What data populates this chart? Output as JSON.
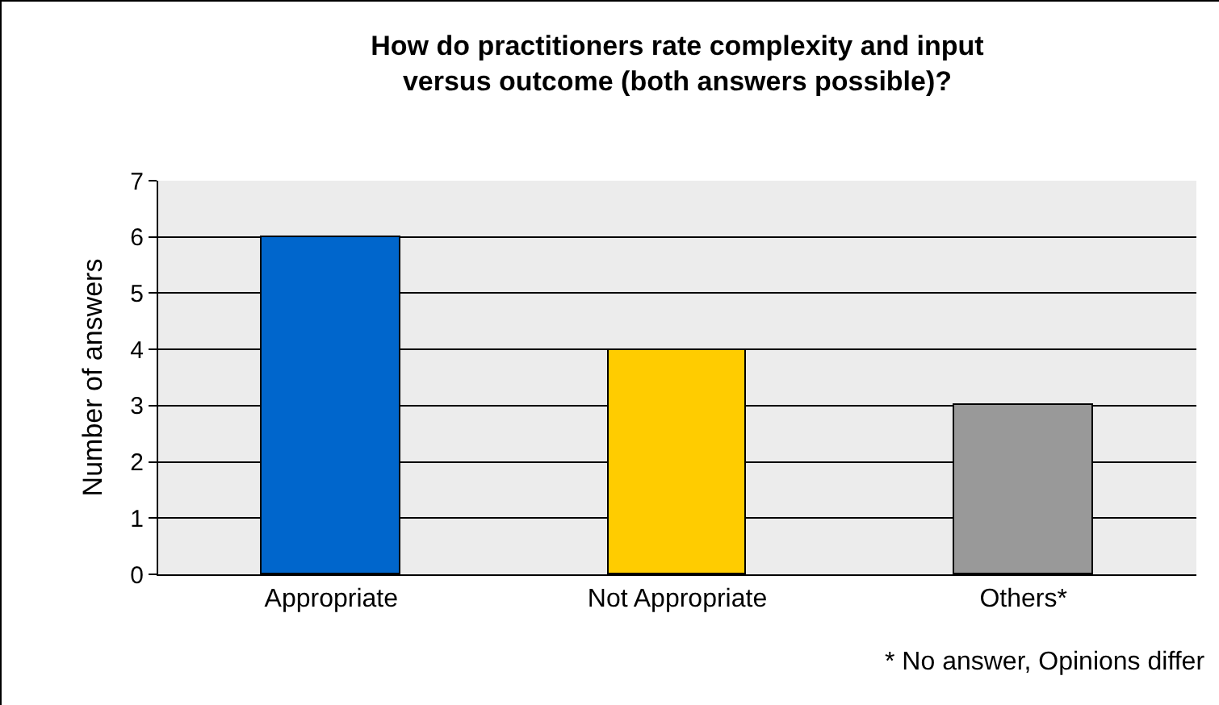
{
  "chart_data": {
    "type": "bar",
    "title": "How do practitioners rate complexity and input versus outcome (both answers possible)?",
    "ylabel": "Number of answers",
    "categories": [
      "Appropriate",
      "Not Appropriate",
      "Others*"
    ],
    "values": [
      6,
      4,
      3
    ],
    "colors": [
      "#0066cc",
      "#ffcc00",
      "#999999"
    ],
    "ylim": [
      0,
      7
    ],
    "yticks": [
      0,
      1,
      2,
      3,
      4,
      5,
      6,
      7
    ],
    "grid": "y",
    "annotations": [
      "* No answer, Opinions differ"
    ]
  }
}
